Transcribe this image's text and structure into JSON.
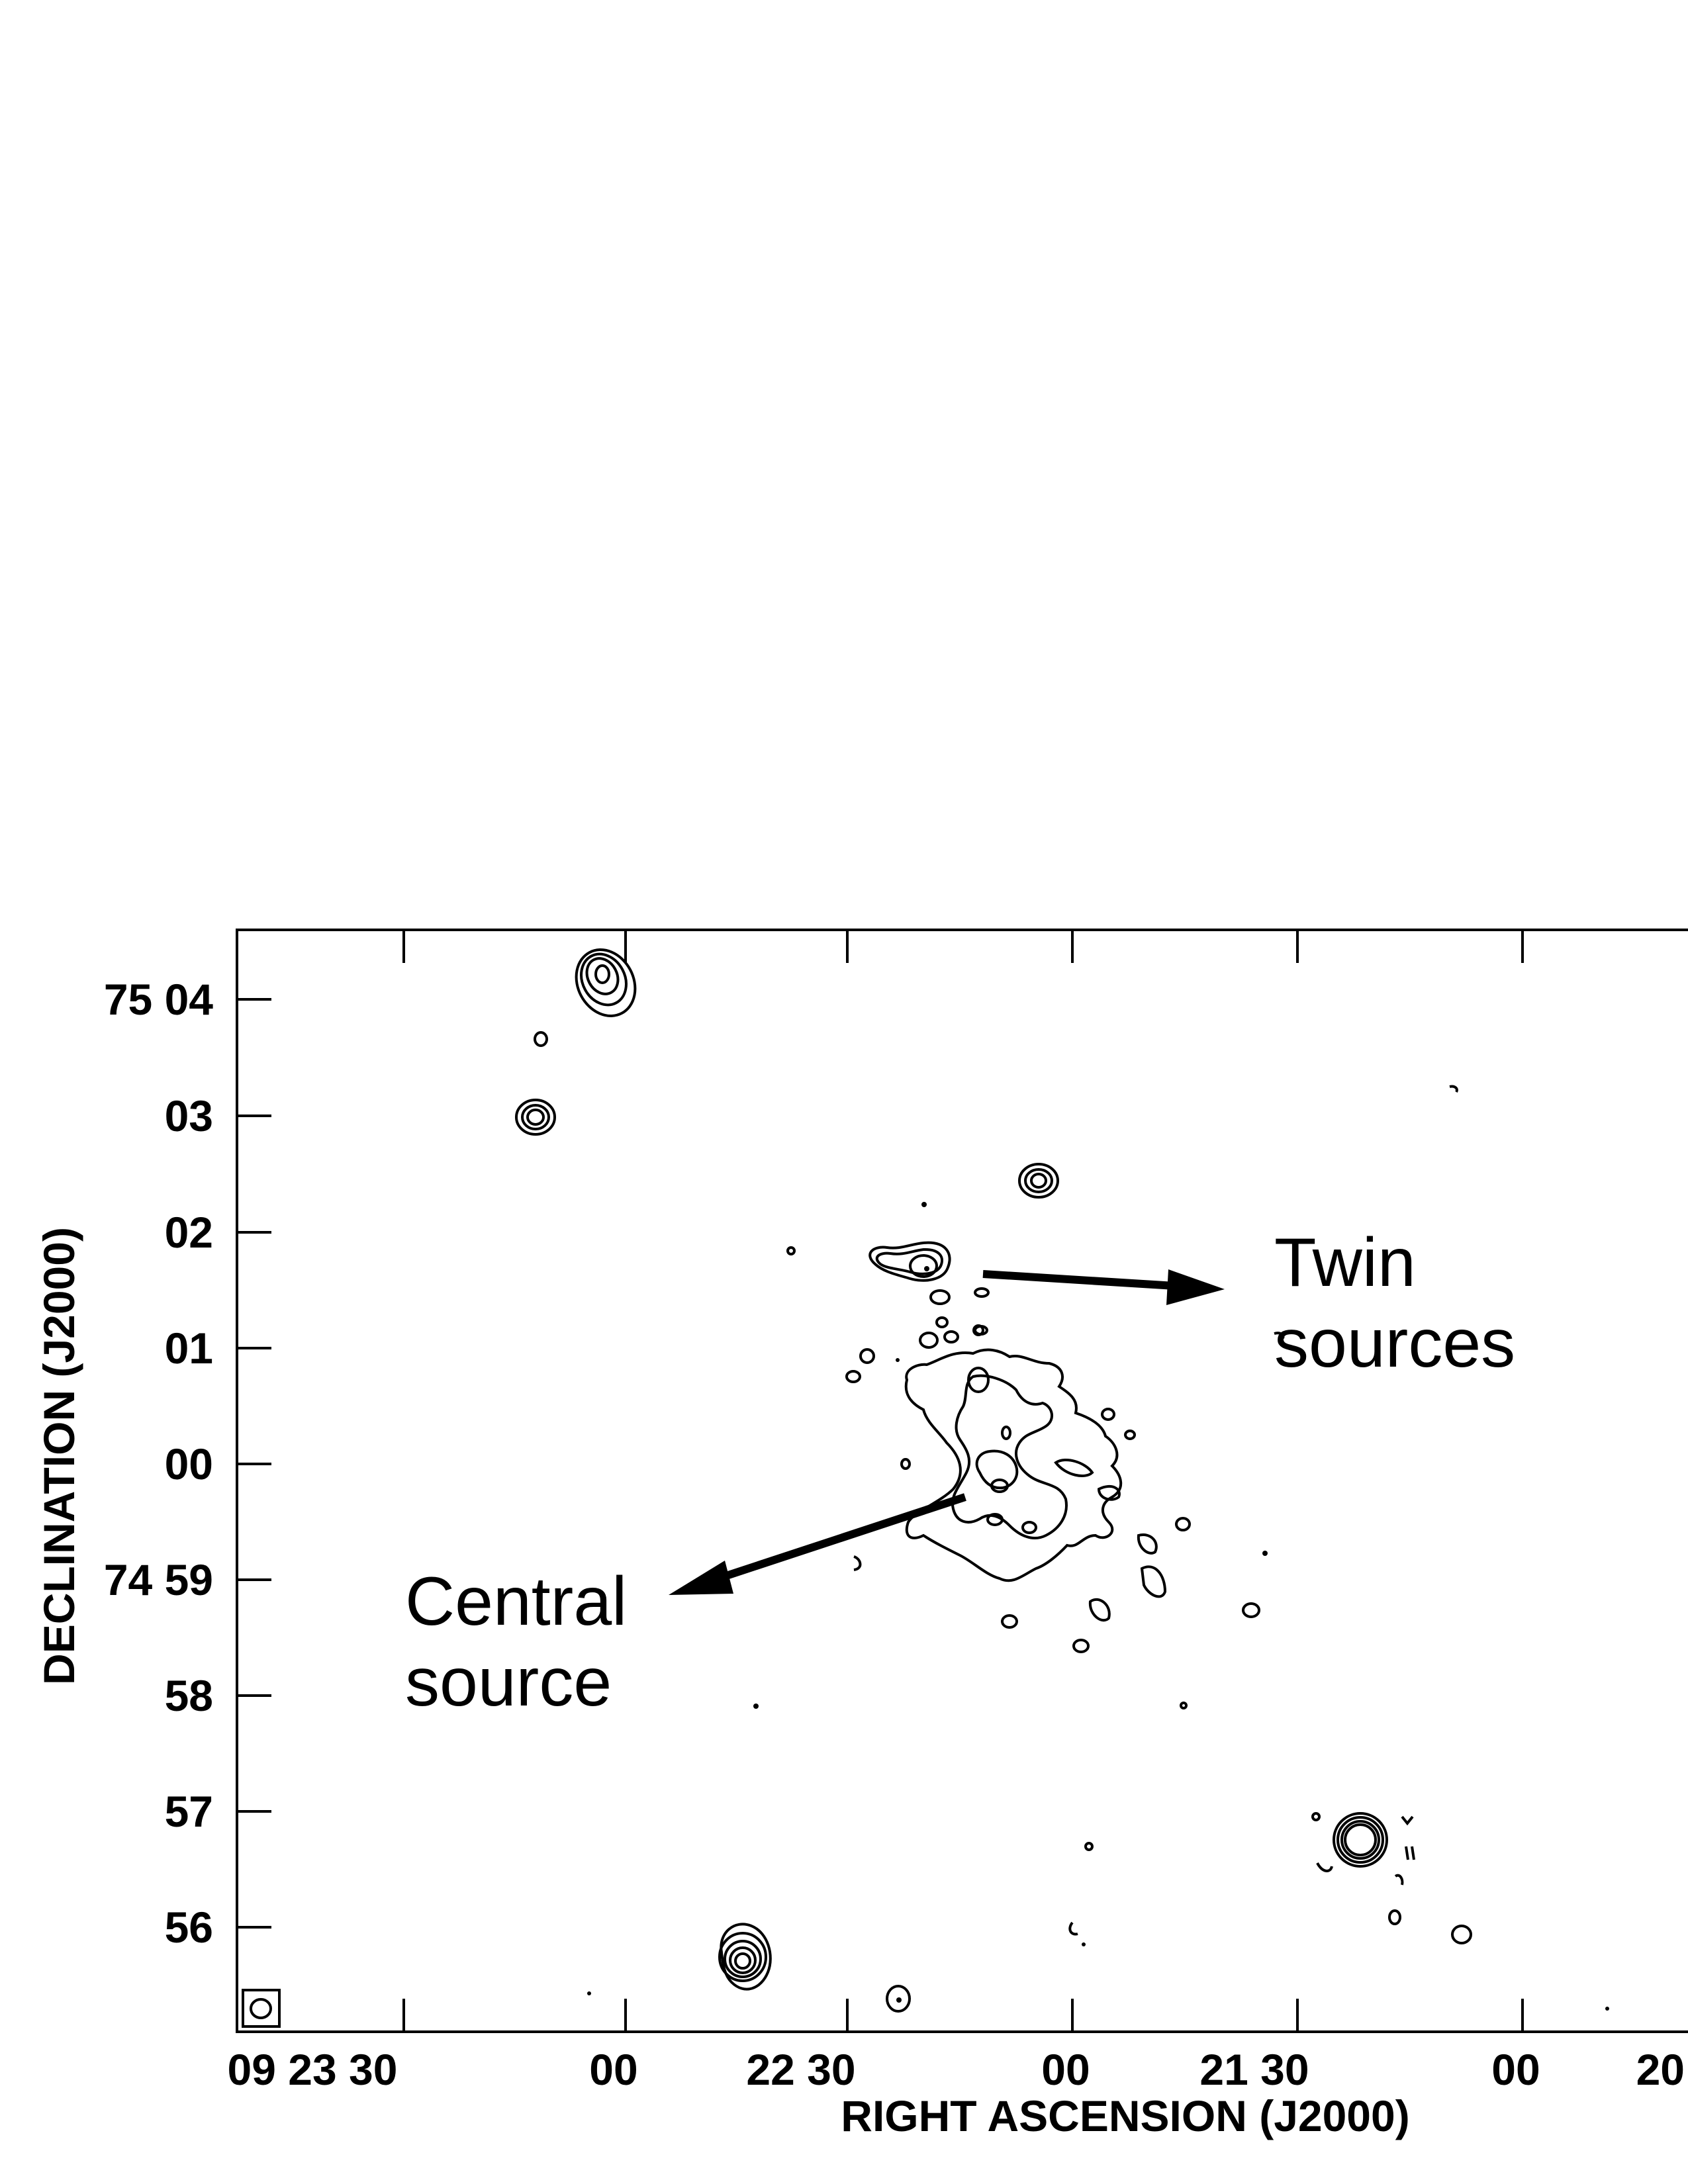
{
  "figure": {
    "x_axis": {
      "title": "RIGHT ASCENSION (J2000)",
      "tick_labels": [
        "09 23 30",
        "00",
        "22 30",
        "00",
        "21 30",
        "00",
        "20"
      ]
    },
    "y_axis": {
      "title": "DECLINATION (J2000)",
      "tick_labels": [
        "75 04",
        "03",
        "02",
        "01",
        "00",
        "74 59",
        "58",
        "57",
        "56"
      ]
    },
    "annotations": {
      "twin": [
        "Twin",
        "sources"
      ],
      "central": [
        "Central",
        "source"
      ]
    },
    "beam_marker": "beam-ellipse",
    "colors": {
      "ink": "#000000",
      "background": "#ffffff"
    }
  }
}
